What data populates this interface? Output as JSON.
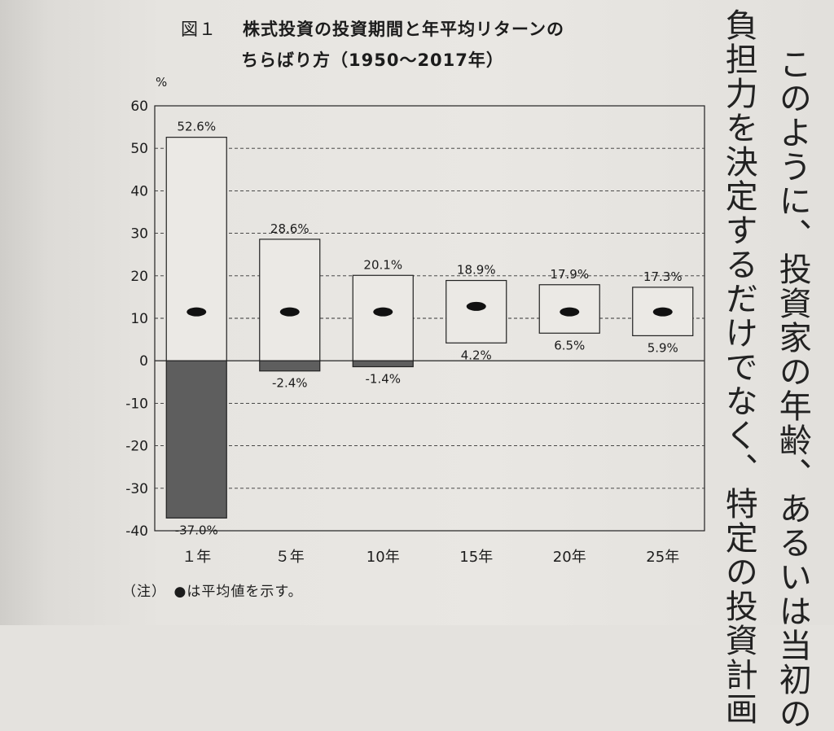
{
  "figure": {
    "label": "図１",
    "title_line1": "株式投資の投資期間と年平均リターンの",
    "title_line2": "ちらばり方（1950〜2017年）",
    "unit": "%",
    "note": "（注）　●は平均値を示す。"
  },
  "body_text": {
    "column1": "このように、投資家の年齢、あるいは当初の",
    "column2": "負担力を決定するだけでなく、特定の投資計画"
  },
  "chart_data": {
    "type": "bar",
    "title": "株式投資の投資期間と年平均リターンのちらばり方（1950〜2017年）",
    "ylabel": "%",
    "xlabel": "",
    "ylim": [
      -40,
      60
    ],
    "yticks": [
      60,
      50,
      40,
      30,
      20,
      10,
      0,
      -10,
      -20,
      -30,
      -40
    ],
    "grid": true,
    "categories": [
      "１年",
      "５年",
      "10年",
      "15年",
      "20年",
      "25年"
    ],
    "series": [
      {
        "values": [
          52.6,
          28.6,
          20.1,
          18.9,
          17.9,
          17.3
        ]
      },
      {
        "values": [
          -37.0,
          -2.4,
          -1.4,
          4.2,
          6.5,
          5.9
        ]
      },
      {
        "values": [
          11.5,
          11.5,
          11.5,
          12.8,
          11.5,
          11.5
        ]
      }
    ],
    "max_labels": [
      "52.6%",
      "28.6%",
      "20.1%",
      "18.9%",
      "17.9%",
      "17.3%"
    ],
    "min_labels": [
      "-37.0%",
      "-2.4%",
      "-1.4%",
      "4.2%",
      "6.5%",
      "5.9%"
    ],
    "colors": {
      "negative_fill": "#5e5e5e",
      "box_fill": "#ebe9e5",
      "line": "#222222"
    }
  }
}
